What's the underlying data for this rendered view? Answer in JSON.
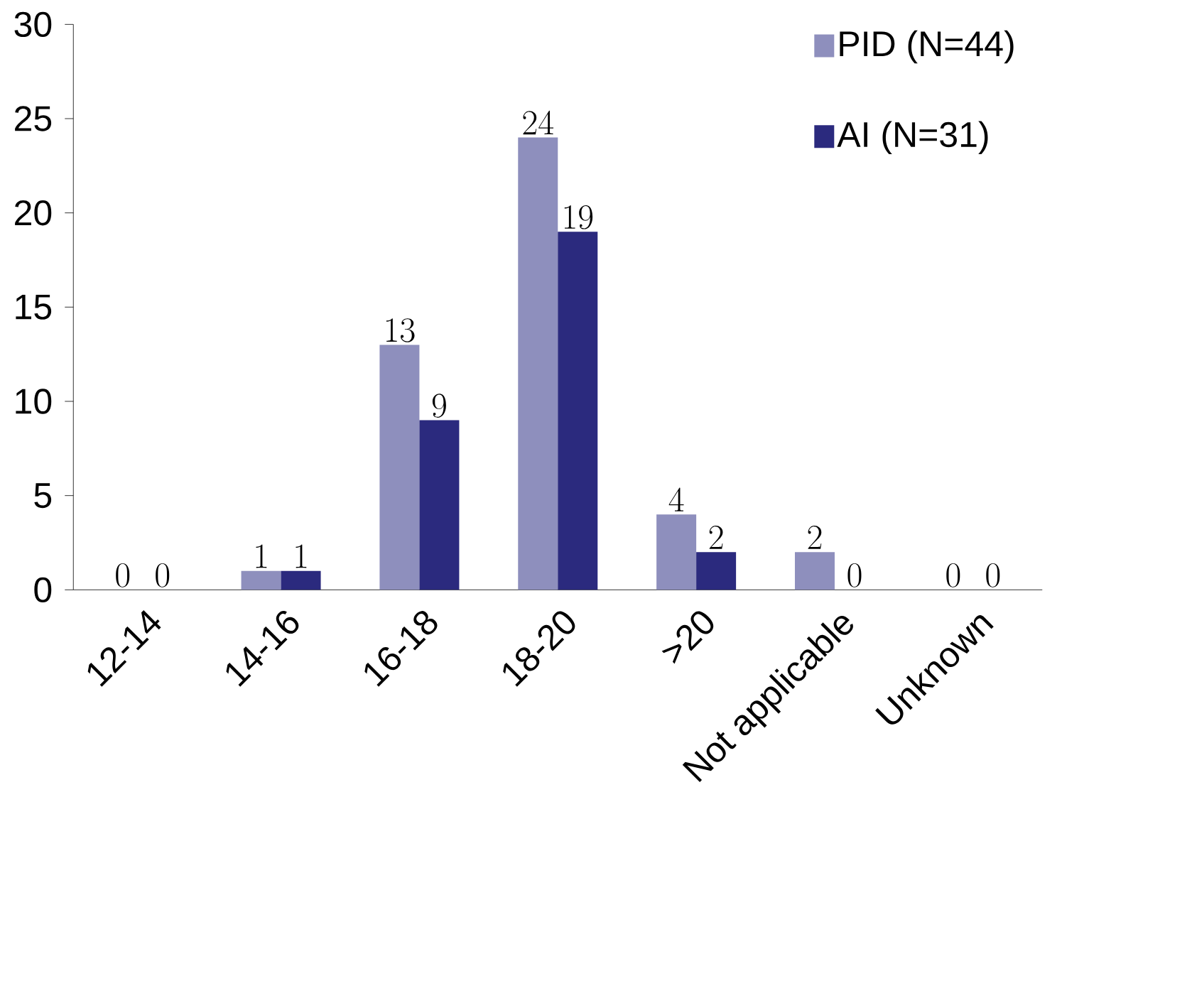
{
  "chart_data": {
    "type": "bar",
    "categories": [
      "12-14",
      "14-16",
      "16-18",
      "18-20",
      ">20",
      "Not applicable",
      "Unknown"
    ],
    "series": [
      {
        "name": "PID (N=44)",
        "color": "#8e8fbd",
        "values": [
          0,
          1,
          13,
          24,
          4,
          2,
          0
        ]
      },
      {
        "name": "AI (N=31)",
        "color": "#2b2a7e",
        "values": [
          0,
          1,
          9,
          19,
          2,
          0,
          0
        ]
      }
    ],
    "ylim": [
      0,
      30
    ],
    "yticks": [
      0,
      5,
      10,
      15,
      20,
      25,
      30
    ],
    "data_labels": true,
    "legend": "top right",
    "grid": false
  }
}
